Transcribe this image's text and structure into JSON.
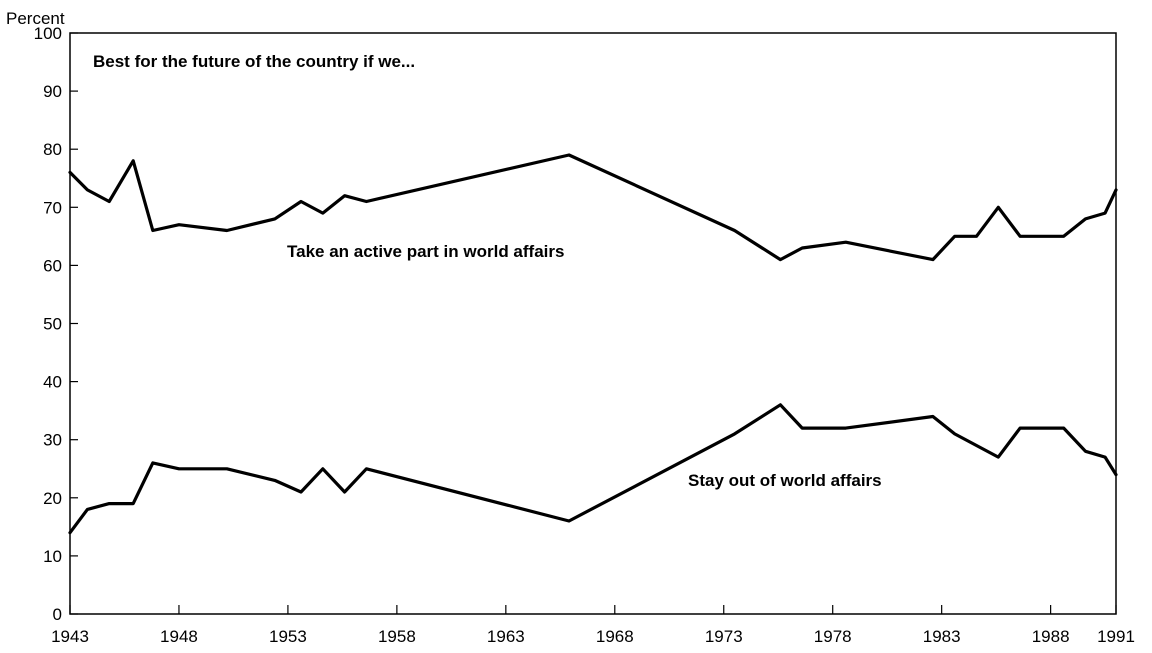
{
  "chart_data": {
    "type": "line",
    "ylabel": "Percent",
    "title": "Best for the future of the country if we...",
    "xlim": [
      1943,
      1991
    ],
    "ylim": [
      0,
      100
    ],
    "x_ticks": [
      "1943",
      "1948",
      "1953",
      "1958",
      "1963",
      "1968",
      "1973",
      "1978",
      "1983",
      "1988",
      "1991"
    ],
    "y_ticks": [
      "0",
      "10",
      "20",
      "30",
      "40",
      "50",
      "60",
      "70",
      "80",
      "90",
      "100"
    ],
    "grid": false,
    "series": [
      {
        "name": "Take an active part in world affairs",
        "points": [
          [
            1943.0,
            76
          ],
          [
            1943.8,
            73
          ],
          [
            1944.8,
            71
          ],
          [
            1945.9,
            78
          ],
          [
            1946.8,
            66
          ],
          [
            1948.0,
            67
          ],
          [
            1950.2,
            66
          ],
          [
            1952.4,
            68
          ],
          [
            1953.6,
            71
          ],
          [
            1954.6,
            69
          ],
          [
            1955.6,
            72
          ],
          [
            1956.6,
            71
          ],
          [
            1965.9,
            79
          ],
          [
            1973.5,
            66
          ],
          [
            1975.6,
            61
          ],
          [
            1976.6,
            63
          ],
          [
            1978.6,
            64
          ],
          [
            1982.6,
            61
          ],
          [
            1983.6,
            65
          ],
          [
            1984.6,
            65
          ],
          [
            1985.6,
            70
          ],
          [
            1986.6,
            65
          ],
          [
            1988.6,
            65
          ],
          [
            1989.6,
            68
          ],
          [
            1990.5,
            69
          ],
          [
            1991.0,
            73
          ]
        ]
      },
      {
        "name": "Stay out of world affairs",
        "points": [
          [
            1943.0,
            14
          ],
          [
            1943.8,
            18
          ],
          [
            1944.8,
            19
          ],
          [
            1945.9,
            19
          ],
          [
            1946.8,
            26
          ],
          [
            1948.0,
            25
          ],
          [
            1950.2,
            25
          ],
          [
            1952.4,
            23
          ],
          [
            1953.6,
            21
          ],
          [
            1954.6,
            25
          ],
          [
            1955.6,
            21
          ],
          [
            1956.6,
            25
          ],
          [
            1965.9,
            16
          ],
          [
            1973.5,
            31
          ],
          [
            1975.6,
            36
          ],
          [
            1976.6,
            32
          ],
          [
            1978.6,
            32
          ],
          [
            1982.6,
            34
          ],
          [
            1983.6,
            31
          ],
          [
            1985.6,
            27
          ],
          [
            1986.6,
            32
          ],
          [
            1988.6,
            32
          ],
          [
            1989.6,
            28
          ],
          [
            1990.5,
            27
          ],
          [
            1991.0,
            24
          ]
        ]
      }
    ],
    "annotations": [
      "Take an active part in world affairs",
      "Stay out of world affairs"
    ]
  }
}
